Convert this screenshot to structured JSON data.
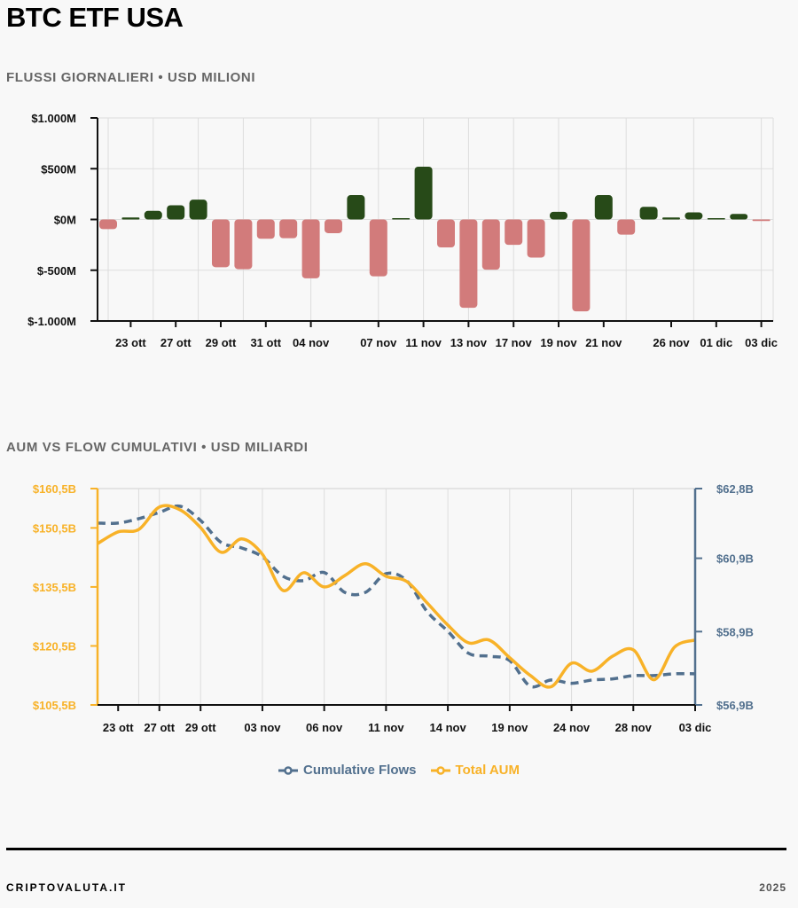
{
  "header": {
    "title": "BTC ETF USA"
  },
  "colors": {
    "inflow": "#274a18",
    "outflow": "#d27b7b",
    "aum": "#f8b228",
    "flows": "#52708e",
    "grid": "#dddddd"
  },
  "chart_data": [
    {
      "type": "bar",
      "title": "FLUSSI GIORNALIERI • USD MILIONI",
      "ylabel": "USD milioni",
      "ylim": [
        -1000,
        1000
      ],
      "yticks": [
        {
          "value": 1000,
          "label": "$1.000M"
        },
        {
          "value": 500,
          "label": "$500M"
        },
        {
          "value": 0,
          "label": "$0M"
        },
        {
          "value": -500,
          "label": "$-500M"
        },
        {
          "value": -1000,
          "label": "$-1.000M"
        }
      ],
      "values": [
        -95,
        20,
        85,
        140,
        195,
        -470,
        -490,
        -190,
        -185,
        -580,
        -135,
        240,
        -560,
        5,
        520,
        -275,
        -870,
        -495,
        -250,
        -375,
        75,
        -905,
        240,
        -150,
        125,
        20,
        70,
        5,
        55,
        -15
      ],
      "xticks": [
        {
          "index": 1,
          "label": "23 ott"
        },
        {
          "index": 3,
          "label": "27 ott"
        },
        {
          "index": 5,
          "label": "29 ott"
        },
        {
          "index": 7,
          "label": "31 ott"
        },
        {
          "index": 9,
          "label": "04 nov"
        },
        {
          "index": 12,
          "label": "07 nov"
        },
        {
          "index": 14,
          "label": "11 nov"
        },
        {
          "index": 16,
          "label": "13 nov"
        },
        {
          "index": 18,
          "label": "17 nov"
        },
        {
          "index": 20,
          "label": "19 nov"
        },
        {
          "index": 22,
          "label": "21 nov"
        },
        {
          "index": 25,
          "label": "26 nov"
        },
        {
          "index": 27,
          "label": "01 dic"
        },
        {
          "index": 29,
          "label": "03 dic"
        }
      ],
      "grid": true
    },
    {
      "type": "line",
      "title": "AUM VS FLOW CUMULATIVI • USD MILIARDI",
      "ylim_left": [
        105.5,
        160.5
      ],
      "ylim_right": [
        56.9,
        62.8
      ],
      "yticks_left": [
        {
          "value": 160.5,
          "label": "$160,5B"
        },
        {
          "value": 150.5,
          "label": "$150,5B"
        },
        {
          "value": 135.5,
          "label": "$135,5B"
        },
        {
          "value": 120.5,
          "label": "$120,5B"
        },
        {
          "value": 105.5,
          "label": "$105,5B"
        }
      ],
      "yticks_right": [
        {
          "value": 62.8,
          "label": "$62,8B"
        },
        {
          "value": 60.9,
          "label": "$60,9B"
        },
        {
          "value": 58.9,
          "label": "$58,9B"
        },
        {
          "value": 56.9,
          "label": "$56,9B"
        }
      ],
      "xticks": [
        {
          "index": 1,
          "label": "23 ott"
        },
        {
          "index": 3,
          "label": "27 ott"
        },
        {
          "index": 5,
          "label": "29 ott"
        },
        {
          "index": 8,
          "label": "03 nov"
        },
        {
          "index": 11,
          "label": "06 nov"
        },
        {
          "index": 14,
          "label": "11 nov"
        },
        {
          "index": 17,
          "label": "14 nov"
        },
        {
          "index": 20,
          "label": "19 nov"
        },
        {
          "index": 23,
          "label": "24 nov"
        },
        {
          "index": 26,
          "label": "28 nov"
        },
        {
          "index": 29,
          "label": "03 dic"
        }
      ],
      "series": [
        {
          "name": "Cumulative Flows",
          "axis": "right",
          "style": "dashed",
          "values": [
            61.86,
            61.86,
            61.98,
            62.15,
            62.32,
            61.93,
            61.33,
            61.18,
            60.94,
            60.41,
            60.29,
            60.51,
            59.97,
            59.97,
            60.48,
            60.29,
            59.44,
            58.91,
            58.31,
            58.23,
            58.11,
            57.41,
            57.58,
            57.49,
            57.58,
            57.61,
            57.7,
            57.7,
            57.75,
            57.75
          ]
        },
        {
          "name": "Total AUM",
          "axis": "left",
          "style": "solid",
          "values": [
            146.5,
            149.5,
            150.1,
            155.8,
            155.1,
            150.6,
            144.3,
            147.7,
            143.8,
            134.6,
            139.1,
            135.5,
            138.4,
            141.4,
            138.2,
            136.9,
            131.4,
            125.8,
            121.3,
            122.0,
            117.5,
            113.0,
            110.1,
            116.1,
            114.1,
            117.9,
            119.5,
            111.9,
            120.2,
            122.0
          ]
        }
      ],
      "legend": "bottom-center",
      "grid": true
    }
  ],
  "footer": {
    "brand": "CRIPTOVALUTA.IT",
    "year": "2025"
  }
}
